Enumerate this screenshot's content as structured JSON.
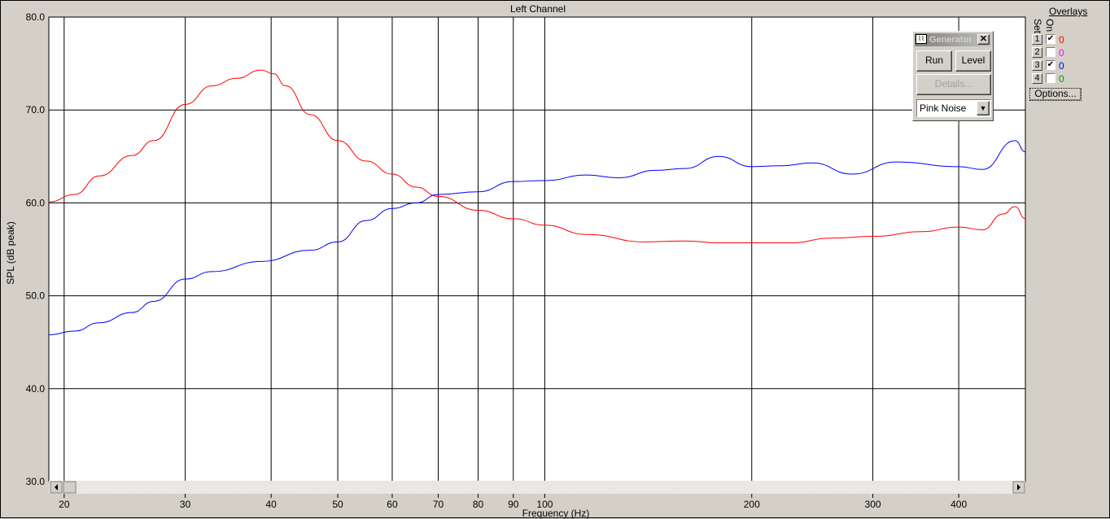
{
  "chart_data": {
    "type": "line",
    "title": "Left Channel",
    "xlabel": "Frequency (Hz)",
    "ylabel": "SPL (dB peak)",
    "xscale": "log",
    "xlim": [
      19,
      500
    ],
    "ylim": [
      30,
      80
    ],
    "grid": true,
    "xticks": [
      20,
      30,
      40,
      50,
      60,
      70,
      80,
      90,
      100,
      200,
      300,
      400
    ],
    "yticks": [
      "30.0",
      "40.0",
      "50.0",
      "60.0",
      "70.0",
      "80.0"
    ],
    "series": [
      {
        "color": "#ff0000",
        "points": [
          [
            19,
            60.1
          ],
          [
            20.7,
            60.9
          ],
          [
            22.5,
            62.9
          ],
          [
            25.1,
            65.1
          ],
          [
            27,
            66.7
          ],
          [
            30,
            70.6
          ],
          [
            32.8,
            72.6
          ],
          [
            35.6,
            73.4
          ],
          [
            38.7,
            74.3
          ],
          [
            40.3,
            73.9
          ],
          [
            42,
            72.6
          ],
          [
            45.6,
            69.5
          ],
          [
            50,
            66.7
          ],
          [
            55,
            64.5
          ],
          [
            60,
            63.1
          ],
          [
            65,
            61.7
          ],
          [
            70,
            60.7
          ],
          [
            80,
            59.2
          ],
          [
            90,
            58.3
          ],
          [
            100,
            57.6
          ],
          [
            115,
            56.6
          ],
          [
            140,
            55.8
          ],
          [
            160,
            55.9
          ],
          [
            179,
            55.7
          ],
          [
            200,
            55.7
          ],
          [
            228,
            55.7
          ],
          [
            261,
            56.2
          ],
          [
            302,
            56.4
          ],
          [
            353,
            56.9
          ],
          [
            400,
            57.4
          ],
          [
            433,
            57.1
          ],
          [
            464,
            58.8
          ],
          [
            483,
            59.6
          ],
          [
            500,
            58.3
          ]
        ]
      },
      {
        "color": "#0000ff",
        "points": [
          [
            19,
            45.8
          ],
          [
            20.7,
            46.2
          ],
          [
            22.5,
            47.1
          ],
          [
            25.1,
            48.2
          ],
          [
            27,
            49.4
          ],
          [
            30,
            51.8
          ],
          [
            32.8,
            52.6
          ],
          [
            38.7,
            53.7
          ],
          [
            45.6,
            54.9
          ],
          [
            50,
            55.8
          ],
          [
            55,
            58.1
          ],
          [
            60,
            59.4
          ],
          [
            65,
            60.0
          ],
          [
            70,
            60.9
          ],
          [
            80,
            61.2
          ],
          [
            90,
            62.3
          ],
          [
            100,
            62.4
          ],
          [
            115,
            63.0
          ],
          [
            128,
            62.7
          ],
          [
            145,
            63.5
          ],
          [
            160,
            63.7
          ],
          [
            179,
            65.0
          ],
          [
            200,
            63.9
          ],
          [
            221,
            64.0
          ],
          [
            245,
            64.3
          ],
          [
            280,
            63.1
          ],
          [
            324,
            64.4
          ],
          [
            400,
            63.9
          ],
          [
            433,
            63.6
          ],
          [
            483,
            66.7
          ],
          [
            500,
            65.5
          ]
        ]
      }
    ]
  },
  "generator": {
    "title": "Generator",
    "run": "Run",
    "level": "Level",
    "details": "Details...",
    "signal": "Pink Noise",
    "icon": "waveform-icon"
  },
  "overlays": {
    "title": "Overlays",
    "set_label": "Set",
    "on_label": "On",
    "options": "Options...",
    "rows": [
      {
        "set": "1",
        "on": true,
        "value": "0",
        "color": "#ff0000"
      },
      {
        "set": "2",
        "on": false,
        "value": "0",
        "color": "#ff00ff"
      },
      {
        "set": "3",
        "on": true,
        "value": "0",
        "color": "#0000ff"
      },
      {
        "set": "4",
        "on": false,
        "value": "0",
        "color": "#00a000"
      }
    ]
  }
}
